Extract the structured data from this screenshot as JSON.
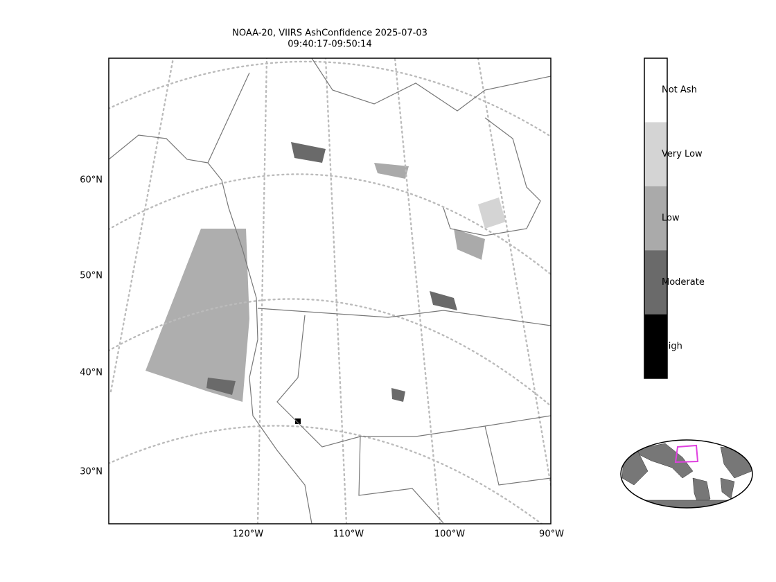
{
  "title": [
    "NOAA-20, VIIRS AshConfidence 2025-07-03",
    "09:40:17-09:50:14"
  ],
  "lat_labels": [
    "60°N",
    "50°N",
    "40°N",
    "30°N"
  ],
  "lon_labels": [
    "120°W",
    "110°W",
    "100°W",
    "90°W"
  ],
  "colorbar": [
    {
      "label": "Not Ash",
      "color": "#ffffff"
    },
    {
      "label": "Very Low",
      "color": "#d4d4d4"
    },
    {
      "label": "Low",
      "color": "#aaaaaa"
    },
    {
      "label": "Moderate",
      "color": "#6a6a6a"
    },
    {
      "label": "High",
      "color": "#000000"
    }
  ]
}
